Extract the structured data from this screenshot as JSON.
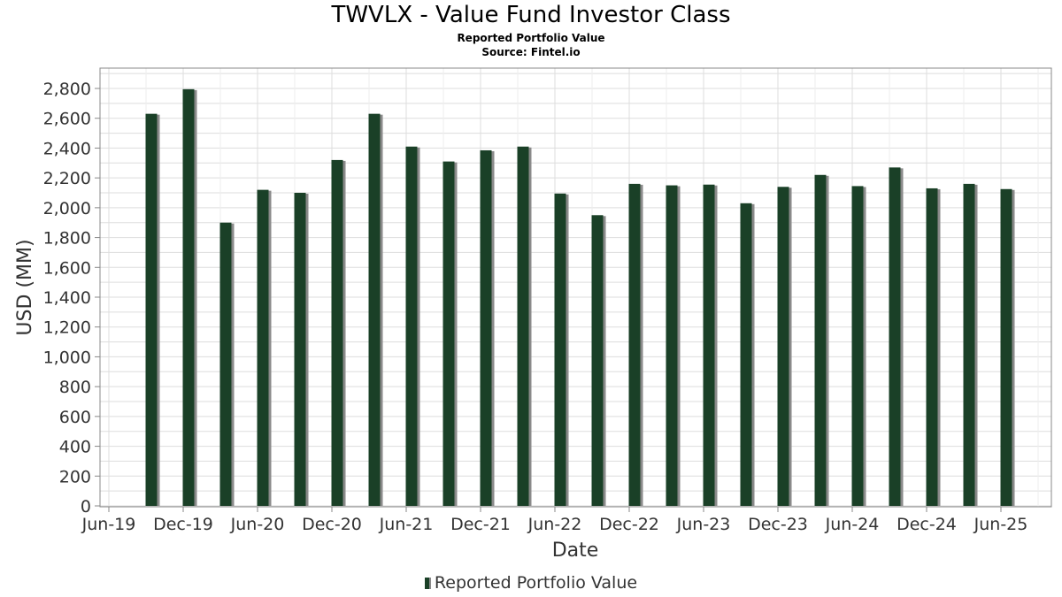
{
  "header": {
    "title": "TWVLX - Value Fund Investor Class",
    "subtitle": "Reported Portfolio Value",
    "source": "Source: Fintel.io"
  },
  "legend": {
    "label": "Reported Portfolio Value"
  },
  "colors": {
    "bar": "#1a4027",
    "bar_shadow": "#8a8a8a",
    "grid": "#dddddd",
    "frame": "#888888"
  },
  "chart_data": {
    "type": "bar",
    "title": "TWVLX - Value Fund Investor Class",
    "subtitle": "Reported Portfolio Value",
    "xlabel": "Date",
    "ylabel": "USD (MM)",
    "ylim": [
      0,
      2900
    ],
    "yticks": [
      0,
      200,
      400,
      600,
      800,
      1000,
      1200,
      1400,
      1600,
      1800,
      2000,
      2200,
      2400,
      2600,
      2800
    ],
    "ytick_labels": [
      "0",
      "200",
      "400",
      "600",
      "800",
      "1,000",
      "1,200",
      "1,400",
      "1,600",
      "1,800",
      "2,000",
      "2,200",
      "2,400",
      "2,600",
      "2,800"
    ],
    "x_range_months": [
      0,
      73
    ],
    "xticks": [
      {
        "month": 0,
        "label": "Jun-19"
      },
      {
        "month": 6,
        "label": "Dec-19"
      },
      {
        "month": 12,
        "label": "Jun-20"
      },
      {
        "month": 18,
        "label": "Dec-20"
      },
      {
        "month": 24,
        "label": "Jun-21"
      },
      {
        "month": 30,
        "label": "Dec-21"
      },
      {
        "month": 36,
        "label": "Jun-22"
      },
      {
        "month": 42,
        "label": "Dec-22"
      },
      {
        "month": 48,
        "label": "Jun-23"
      },
      {
        "month": 54,
        "label": "Dec-23"
      },
      {
        "month": 60,
        "label": "Jun-24"
      },
      {
        "month": 66,
        "label": "Dec-24"
      },
      {
        "month": 72,
        "label": "Jun-25"
      }
    ],
    "legend_position": "bottom-center",
    "grid": true,
    "series": [
      {
        "name": "Reported Portfolio Value",
        "months": [
          3,
          6,
          9,
          12,
          15,
          18,
          21,
          24,
          27,
          30,
          33,
          36,
          39,
          42,
          45,
          48,
          51,
          54,
          57,
          60,
          63,
          66,
          69,
          72
        ],
        "values": [
          2630,
          2795,
          1900,
          2120,
          2100,
          2320,
          2630,
          2410,
          2310,
          2385,
          2410,
          2095,
          1950,
          2160,
          2150,
          2155,
          2030,
          2140,
          2220,
          2145,
          2270,
          2130,
          2160,
          2125
        ]
      }
    ]
  }
}
